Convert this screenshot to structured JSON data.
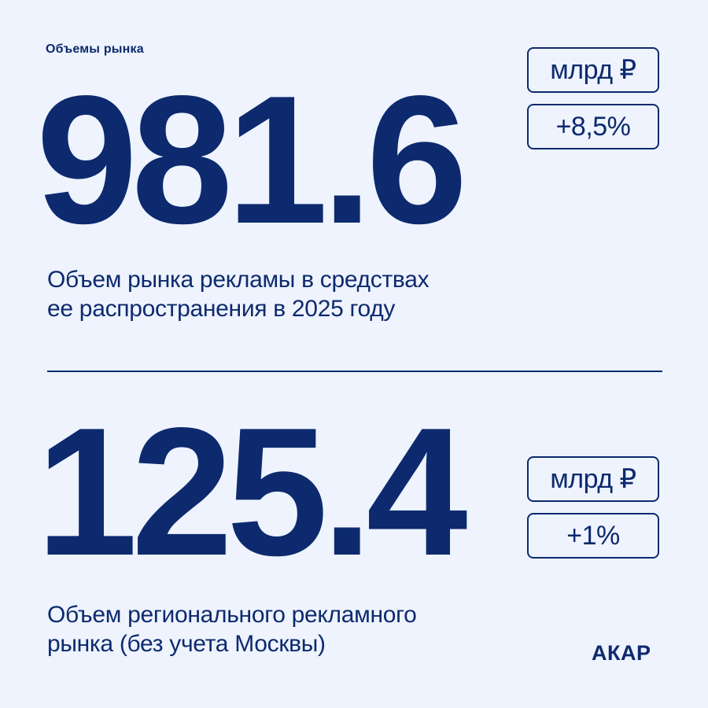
{
  "header": {
    "kicker": "Объемы рынка"
  },
  "stats": [
    {
      "value": "981.6",
      "unit": "млрд ₽",
      "change": "+8,5%",
      "caption_line1": "Объем рынка рекламы в средствах",
      "caption_line2": "ее распространения в 2025 году"
    },
    {
      "value": "125.4",
      "unit": "млрд ₽",
      "change": "+1%",
      "caption_line1": "Объем регионального рекламного",
      "caption_line2": "рынка (без учета Москвы)"
    }
  ],
  "brand": {
    "logo_text": "АКАР"
  },
  "colors": {
    "background": "#eef3fe",
    "accent": "#0d2a6e"
  }
}
